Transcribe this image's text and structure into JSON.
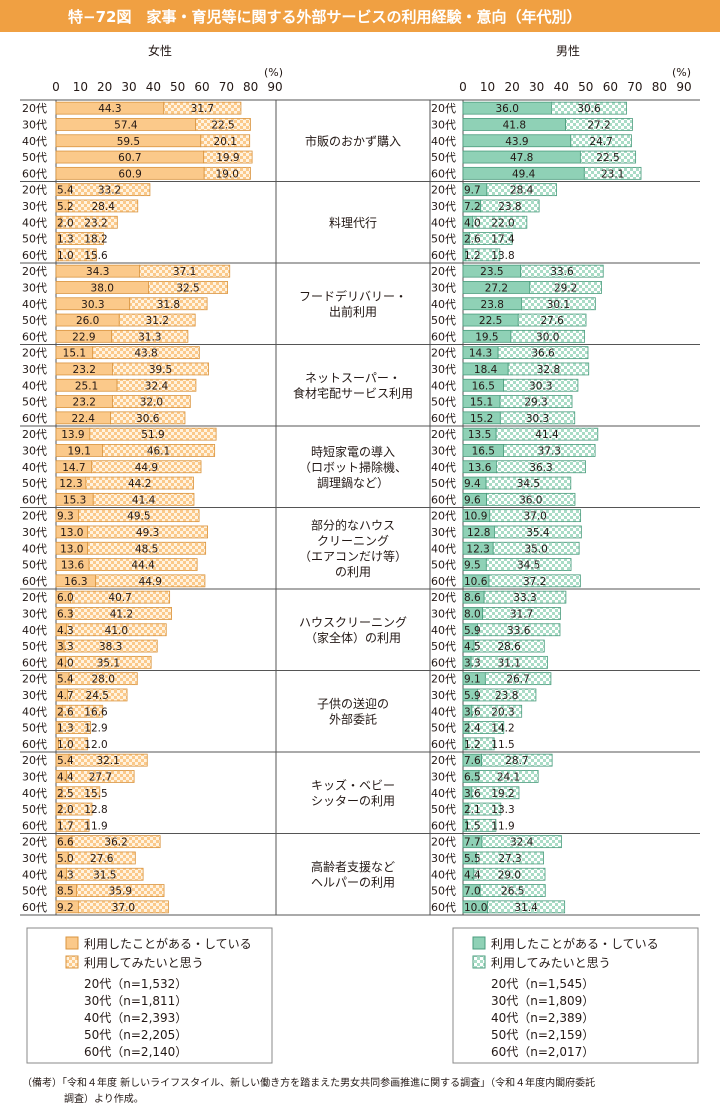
{
  "header": {
    "title": "特−72図　家事・育児等に関する外部サービスの利用経験・意向（年代別）"
  },
  "colors": {
    "title_bar": "#f0a042",
    "female_used": "#fbc98a",
    "female_check_a": "#fbc98a",
    "female_check_b": "#fff3e0",
    "female_border": "#d9943f",
    "male_used": "#8fd1b6",
    "male_check_a": "#a9dcc6",
    "male_check_b": "#ffffff",
    "male_border": "#4a9c7d",
    "text": "#231815"
  },
  "axis": {
    "ticks": [
      "0",
      "10",
      "20",
      "30",
      "40",
      "50",
      "60",
      "70",
      "80",
      "90"
    ],
    "unit": "(%)"
  },
  "legends": {
    "female": {
      "used": "利用したことがある・している",
      "want": "利用してみたいと思う",
      "n": [
        "20代（n=1,532）",
        "30代（n=1,811）",
        "40代（n=2,393）",
        "50代（n=2,205）",
        "60代（n=2,140）"
      ]
    },
    "male": {
      "used": "利用したことがある・している",
      "want": "利用してみたいと思う",
      "n": [
        "20代（n=1,545）",
        "30代（n=1,809）",
        "40代（n=2,389）",
        "50代（n=2,159）",
        "60代（n=2,017）"
      ]
    }
  },
  "footnote": {
    "line1": "（備考）「令和４年度 新しいライフスタイル、新しい働き方を踏まえた男女共同参画推進に関する調査」（令和４年度内閣府委託",
    "line2": "調査）より作成。"
  },
  "chart_data": {
    "type": "bar",
    "stacked": true,
    "orientation": "horizontal",
    "xlim": [
      0,
      90
    ],
    "age_groups": [
      "20代",
      "30代",
      "40代",
      "50代",
      "60代"
    ],
    "series_names": [
      "利用したことがある・している",
      "利用してみたいと思う"
    ],
    "panels": [
      {
        "title": "女性",
        "key": "female"
      },
      {
        "title": "男性",
        "key": "male"
      }
    ],
    "categories": [
      {
        "label_lines": [
          "市販のおかず購入"
        ],
        "female": {
          "used": [
            44.3,
            57.4,
            59.5,
            60.7,
            60.9
          ],
          "want": [
            31.7,
            22.5,
            20.1,
            19.9,
            19.0
          ]
        },
        "male": {
          "used": [
            36.0,
            41.8,
            43.9,
            47.8,
            49.4
          ],
          "want": [
            30.6,
            27.2,
            24.7,
            22.5,
            23.1
          ]
        }
      },
      {
        "label_lines": [
          "料理代行"
        ],
        "female": {
          "used": [
            5.4,
            5.2,
            2.0,
            1.3,
            1.0
          ],
          "want": [
            33.2,
            28.4,
            23.2,
            18.2,
            15.6
          ]
        },
        "male": {
          "used": [
            9.7,
            7.2,
            4.0,
            2.6,
            1.2
          ],
          "want": [
            28.4,
            23.8,
            22.0,
            17.4,
            13.8
          ]
        }
      },
      {
        "label_lines": [
          "フードデリバリー・",
          "出前利用"
        ],
        "female": {
          "used": [
            34.3,
            38.0,
            30.3,
            26.0,
            22.9
          ],
          "want": [
            37.1,
            32.5,
            31.8,
            31.2,
            31.3
          ]
        },
        "male": {
          "used": [
            23.5,
            27.2,
            23.8,
            22.5,
            19.5
          ],
          "want": [
            33.6,
            29.2,
            30.1,
            27.6,
            30.0
          ]
        }
      },
      {
        "label_lines": [
          "ネットスーパー・",
          "食材宅配サービス利用"
        ],
        "female": {
          "used": [
            15.1,
            23.2,
            25.1,
            23.2,
            22.4
          ],
          "want": [
            43.8,
            39.5,
            32.4,
            32.0,
            30.6
          ]
        },
        "male": {
          "used": [
            14.3,
            18.4,
            16.5,
            15.1,
            15.2
          ],
          "want": [
            36.6,
            32.8,
            30.3,
            29.3,
            30.3
          ]
        }
      },
      {
        "label_lines": [
          "時短家電の導入",
          "（ロボット掃除機、",
          "調理鍋など）"
        ],
        "female": {
          "used": [
            13.9,
            19.1,
            14.7,
            12.3,
            15.3
          ],
          "want": [
            51.9,
            46.1,
            44.9,
            44.2,
            41.4
          ]
        },
        "male": {
          "used": [
            13.5,
            16.5,
            13.6,
            9.4,
            9.6
          ],
          "want": [
            41.4,
            37.3,
            36.3,
            34.5,
            36.0
          ]
        }
      },
      {
        "label_lines": [
          "部分的なハウス",
          "クリーニング",
          "（エアコンだけ等）",
          "の利用"
        ],
        "female": {
          "used": [
            9.3,
            13.0,
            13.0,
            13.6,
            16.3
          ],
          "want": [
            49.5,
            49.3,
            48.5,
            44.4,
            44.9
          ]
        },
        "male": {
          "used": [
            10.9,
            12.8,
            12.3,
            9.5,
            10.6
          ],
          "want": [
            37.0,
            35.4,
            35.0,
            34.5,
            37.2
          ]
        }
      },
      {
        "label_lines": [
          "ハウスクリーニング",
          "（家全体）の利用"
        ],
        "female": {
          "used": [
            6.0,
            6.3,
            4.3,
            3.3,
            4.0
          ],
          "want": [
            40.7,
            41.2,
            41.0,
            38.3,
            35.1
          ]
        },
        "male": {
          "used": [
            8.6,
            8.0,
            5.9,
            4.5,
            3.3
          ],
          "want": [
            33.3,
            31.7,
            33.6,
            28.6,
            31.1
          ]
        }
      },
      {
        "label_lines": [
          "子供の送迎の",
          "外部委託"
        ],
        "female": {
          "used": [
            5.4,
            4.7,
            2.6,
            1.3,
            1.0
          ],
          "want": [
            28.0,
            24.5,
            16.6,
            12.9,
            12.0
          ]
        },
        "male": {
          "used": [
            9.1,
            5.9,
            3.6,
            2.4,
            1.2
          ],
          "want": [
            26.7,
            23.8,
            20.3,
            14.2,
            11.5
          ]
        }
      },
      {
        "label_lines": [
          "キッズ・ベビー",
          "シッターの利用"
        ],
        "female": {
          "used": [
            5.4,
            4.4,
            2.5,
            2.0,
            1.7
          ],
          "want": [
            32.1,
            27.7,
            15.5,
            12.8,
            11.9
          ]
        },
        "male": {
          "used": [
            7.6,
            6.5,
            3.6,
            2.1,
            1.5
          ],
          "want": [
            28.7,
            24.1,
            19.2,
            13.3,
            11.9
          ]
        }
      },
      {
        "label_lines": [
          "高齢者支援など",
          "ヘルパーの利用"
        ],
        "female": {
          "used": [
            6.6,
            5.0,
            4.3,
            8.5,
            9.2
          ],
          "want": [
            36.2,
            27.6,
            31.5,
            35.9,
            37.0
          ]
        },
        "male": {
          "used": [
            7.7,
            5.5,
            4.4,
            7.0,
            10.0
          ],
          "want": [
            32.4,
            27.3,
            29.0,
            26.5,
            31.4
          ]
        }
      }
    ]
  }
}
